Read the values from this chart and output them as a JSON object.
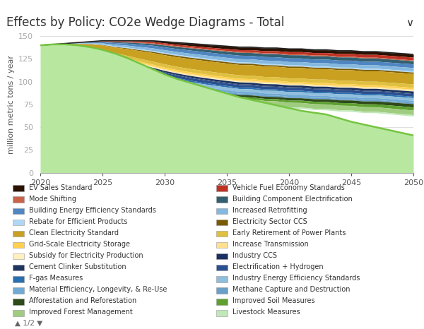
{
  "title": "Effects by Policy: CO2e Wedge Diagrams - Total",
  "ylabel": "million metric tons / year",
  "xlim": [
    2020,
    2050
  ],
  "ylim": [
    0,
    150
  ],
  "yticks": [
    0,
    25,
    50,
    75,
    100,
    125,
    150
  ],
  "xticks": [
    2020,
    2025,
    2030,
    2035,
    2040,
    2045,
    2050
  ],
  "years": [
    2020,
    2021,
    2022,
    2023,
    2024,
    2025,
    2026,
    2027,
    2028,
    2029,
    2030,
    2031,
    2032,
    2033,
    2034,
    2035,
    2036,
    2037,
    2038,
    2039,
    2040,
    2041,
    2042,
    2043,
    2044,
    2045,
    2046,
    2047,
    2048,
    2049,
    2050
  ],
  "bau_line": [
    140,
    141,
    142,
    143,
    144,
    145,
    145,
    145,
    145,
    145,
    144,
    143,
    142,
    141,
    140,
    139,
    138,
    138,
    137,
    137,
    136,
    136,
    135,
    135,
    134,
    134,
    133,
    133,
    132,
    131,
    130
  ],
  "remaining_line": [
    140,
    141,
    141,
    140,
    138,
    135,
    131,
    126,
    120,
    114,
    108,
    103,
    99,
    95,
    91,
    87,
    83,
    80,
    77,
    74,
    71,
    68,
    66,
    64,
    60,
    56,
    53,
    50,
    47,
    44,
    41
  ],
  "series": [
    {
      "name": "EV Sales Standard",
      "color": "#2b1100",
      "values": [
        0,
        0,
        0,
        0,
        0,
        0,
        0,
        0,
        0.5,
        1.0,
        1.5,
        2.0,
        2.3,
        2.5,
        2.7,
        2.8,
        2.9,
        3.0,
        3.0,
        3.1,
        3.1,
        3.1,
        3.1,
        3.1,
        3.1,
        3.1,
        3.1,
        3.1,
        3.1,
        3.1,
        3.1
      ]
    },
    {
      "name": "Vehicle Fuel Economy Standards",
      "color": "#bf3222",
      "values": [
        0,
        0,
        0,
        0,
        0.2,
        0.5,
        0.8,
        1.0,
        1.2,
        1.4,
        1.5,
        1.6,
        1.7,
        1.8,
        1.9,
        2.0,
        2.1,
        2.2,
        2.3,
        2.4,
        2.5,
        2.6,
        2.7,
        2.8,
        2.9,
        3.0,
        3.1,
        3.1,
        3.1,
        3.1,
        3.1
      ]
    },
    {
      "name": "Mode Shifting",
      "color": "#c9634a",
      "values": [
        0,
        0,
        0,
        0,
        0.1,
        0.3,
        0.5,
        0.6,
        0.7,
        0.8,
        0.9,
        0.9,
        0.9,
        0.9,
        0.9,
        0.9,
        0.9,
        0.9,
        0.9,
        0.9,
        0.9,
        0.9,
        0.9,
        0.9,
        0.9,
        0.9,
        0.9,
        0.9,
        0.9,
        0.9,
        0.9
      ]
    },
    {
      "name": "Building Component Electrification",
      "color": "#326070",
      "values": [
        0,
        0,
        0,
        0,
        0.2,
        0.5,
        0.9,
        1.2,
        1.5,
        1.8,
        2.0,
        2.2,
        2.4,
        2.6,
        2.8,
        3.0,
        3.1,
        3.2,
        3.3,
        3.4,
        3.5,
        3.5,
        3.5,
        3.5,
        3.5,
        3.5,
        3.5,
        3.5,
        3.5,
        3.5,
        3.5
      ]
    },
    {
      "name": "Building Energy Efficiency Standards",
      "color": "#4f86c2",
      "values": [
        0,
        0.1,
        0.2,
        0.4,
        0.8,
        1.3,
        1.8,
        2.2,
        2.6,
        2.9,
        3.1,
        3.3,
        3.4,
        3.5,
        3.6,
        3.7,
        3.8,
        3.8,
        3.9,
        3.9,
        4.0,
        4.0,
        4.0,
        4.0,
        4.0,
        4.0,
        4.0,
        4.0,
        4.0,
        4.0,
        4.0
      ]
    },
    {
      "name": "Increased Retrofitting",
      "color": "#85b8de",
      "values": [
        0,
        0.1,
        0.2,
        0.4,
        0.7,
        1.2,
        1.7,
        2.1,
        2.5,
        2.8,
        3.0,
        3.1,
        3.2,
        3.3,
        3.4,
        3.5,
        3.6,
        3.6,
        3.7,
        3.7,
        3.7,
        3.7,
        3.7,
        3.7,
        3.7,
        3.7,
        3.7,
        3.7,
        3.7,
        3.7,
        3.7
      ]
    },
    {
      "name": "Rebate for Efficient Products",
      "color": "#b0d8f5",
      "values": [
        0,
        0.05,
        0.1,
        0.2,
        0.4,
        0.6,
        0.8,
        0.9,
        1.0,
        1.1,
        1.2,
        1.2,
        1.3,
        1.3,
        1.3,
        1.3,
        1.3,
        1.3,
        1.3,
        1.3,
        1.3,
        1.3,
        1.3,
        1.3,
        1.3,
        1.3,
        1.3,
        1.3,
        1.3,
        1.3,
        1.3
      ]
    },
    {
      "name": "Electricity Sector CCS",
      "color": "#7a5a00",
      "values": [
        0,
        0,
        0,
        0.1,
        0.2,
        0.4,
        0.6,
        0.8,
        1.0,
        1.2,
        1.4,
        1.5,
        1.5,
        1.5,
        1.5,
        1.5,
        1.5,
        1.5,
        1.5,
        1.5,
        1.5,
        1.5,
        1.5,
        1.5,
        1.5,
        1.5,
        1.5,
        1.5,
        1.5,
        1.5,
        1.5
      ]
    },
    {
      "name": "Clean Electricity Standard",
      "color": "#c9a020",
      "values": [
        0,
        0.3,
        0.7,
        1.5,
        2.8,
        4.5,
        6.0,
        7.5,
        8.5,
        9.5,
        10.0,
        10.5,
        10.8,
        11.0,
        11.2,
        11.3,
        11.4,
        11.5,
        11.5,
        11.5,
        11.5,
        11.5,
        11.5,
        11.5,
        11.5,
        11.5,
        11.5,
        11.5,
        11.5,
        11.5,
        11.5
      ]
    },
    {
      "name": "Early Retirement of Power Plants",
      "color": "#e0c040",
      "values": [
        0,
        0.1,
        0.3,
        0.6,
        1.0,
        1.5,
        2.0,
        2.5,
        3.0,
        3.3,
        3.5,
        3.6,
        3.7,
        3.8,
        3.8,
        3.8,
        3.8,
        3.8,
        3.8,
        3.8,
        3.8,
        3.8,
        3.8,
        3.8,
        3.8,
        3.8,
        3.8,
        3.8,
        3.8,
        3.8,
        3.8
      ]
    },
    {
      "name": "Grid-Scale Electricity Storage",
      "color": "#ffd050",
      "values": [
        0,
        0.05,
        0.1,
        0.2,
        0.4,
        0.7,
        1.0,
        1.3,
        1.5,
        1.7,
        1.8,
        1.9,
        2.0,
        2.0,
        2.0,
        2.0,
        2.0,
        2.0,
        2.0,
        2.0,
        2.0,
        2.0,
        2.0,
        2.0,
        2.0,
        2.0,
        2.0,
        2.0,
        2.0,
        2.0,
        2.0
      ]
    },
    {
      "name": "Increase Transmission",
      "color": "#ffe090",
      "values": [
        0,
        0.05,
        0.1,
        0.2,
        0.3,
        0.5,
        0.7,
        0.8,
        1.0,
        1.1,
        1.2,
        1.2,
        1.3,
        1.3,
        1.3,
        1.3,
        1.3,
        1.3,
        1.3,
        1.3,
        1.3,
        1.3,
        1.3,
        1.3,
        1.3,
        1.3,
        1.3,
        1.3,
        1.3,
        1.3,
        1.3
      ]
    },
    {
      "name": "Subsidy for Electricity Production",
      "color": "#fff0c0",
      "values": [
        0,
        0.05,
        0.1,
        0.2,
        0.3,
        0.4,
        0.5,
        0.6,
        0.6,
        0.7,
        0.7,
        0.7,
        0.7,
        0.7,
        0.7,
        0.7,
        0.7,
        0.7,
        0.7,
        0.7,
        0.7,
        0.7,
        0.7,
        0.7,
        0.7,
        0.7,
        0.7,
        0.7,
        0.7,
        0.7,
        0.7
      ]
    },
    {
      "name": "Industry CCS",
      "color": "#1a3060",
      "values": [
        0,
        0,
        0,
        0.1,
        0.2,
        0.4,
        0.6,
        0.8,
        1.0,
        1.2,
        1.4,
        1.5,
        1.6,
        1.7,
        1.8,
        1.9,
        2.0,
        2.0,
        2.0,
        2.0,
        2.0,
        2.0,
        2.0,
        2.0,
        2.0,
        2.0,
        2.0,
        2.0,
        2.0,
        2.0,
        2.0
      ]
    },
    {
      "name": "Cement Clinker Substitution",
      "color": "#1e3560",
      "values": [
        0,
        0.05,
        0.1,
        0.2,
        0.3,
        0.4,
        0.5,
        0.6,
        0.6,
        0.7,
        0.7,
        0.7,
        0.7,
        0.7,
        0.7,
        0.7,
        0.7,
        0.7,
        0.7,
        0.7,
        0.7,
        0.7,
        0.7,
        0.7,
        0.7,
        0.7,
        0.7,
        0.7,
        0.7,
        0.7,
        0.7
      ]
    },
    {
      "name": "Electrification + Hydrogen",
      "color": "#2b5090",
      "values": [
        0,
        0,
        0,
        0.1,
        0.3,
        0.7,
        1.1,
        1.5,
        1.9,
        2.2,
        2.5,
        2.7,
        2.9,
        3.0,
        3.0,
        3.0,
        3.0,
        3.0,
        3.0,
        3.0,
        3.0,
        3.0,
        3.0,
        3.0,
        3.0,
        3.0,
        3.0,
        3.0,
        3.0,
        3.0,
        3.0
      ]
    },
    {
      "name": "F-gas Measures",
      "color": "#2870b0",
      "values": [
        0,
        0.05,
        0.1,
        0.2,
        0.4,
        0.6,
        0.8,
        1.0,
        1.2,
        1.3,
        1.4,
        1.5,
        1.5,
        1.5,
        1.5,
        1.5,
        1.5,
        1.5,
        1.5,
        1.5,
        1.5,
        1.5,
        1.5,
        1.5,
        1.5,
        1.5,
        1.5,
        1.5,
        1.5,
        1.5,
        1.5
      ]
    },
    {
      "name": "Industry Energy Efficiency Standards",
      "color": "#90bedd",
      "values": [
        0,
        0.1,
        0.2,
        0.4,
        0.7,
        1.1,
        1.5,
        1.9,
        2.2,
        2.5,
        2.7,
        2.8,
        2.9,
        3.0,
        3.0,
        3.0,
        3.0,
        3.0,
        3.0,
        3.0,
        3.0,
        3.0,
        3.0,
        3.0,
        3.0,
        3.0,
        3.0,
        3.0,
        3.0,
        3.0,
        3.0
      ]
    },
    {
      "name": "Material Efficiency, Longevity, & Re-Use",
      "color": "#70aad5",
      "values": [
        0,
        0.05,
        0.1,
        0.2,
        0.4,
        0.7,
        1.0,
        1.3,
        1.6,
        1.8,
        2.0,
        2.1,
        2.2,
        2.2,
        2.2,
        2.2,
        2.2,
        2.2,
        2.2,
        2.2,
        2.2,
        2.2,
        2.2,
        2.2,
        2.2,
        2.2,
        2.2,
        2.2,
        2.2,
        2.2,
        2.2
      ]
    },
    {
      "name": "Methane Capture and Destruction",
      "color": "#6aa0c8",
      "values": [
        0,
        0.05,
        0.1,
        0.2,
        0.4,
        0.6,
        0.8,
        1.0,
        1.2,
        1.3,
        1.4,
        1.5,
        1.5,
        1.5,
        1.5,
        1.5,
        1.5,
        1.5,
        1.5,
        1.5,
        1.5,
        1.5,
        1.5,
        1.5,
        1.5,
        1.5,
        1.5,
        1.5,
        1.5,
        1.5,
        1.5
      ]
    },
    {
      "name": "Afforestation and Reforestation",
      "color": "#2e4a18",
      "values": [
        0,
        0.05,
        0.1,
        0.2,
        0.3,
        0.5,
        0.7,
        0.9,
        1.1,
        1.3,
        1.5,
        1.6,
        1.7,
        1.8,
        1.9,
        2.0,
        2.1,
        2.2,
        2.3,
        2.4,
        2.5,
        2.6,
        2.7,
        2.8,
        2.9,
        3.0,
        3.1,
        3.2,
        3.3,
        3.4,
        3.5
      ]
    },
    {
      "name": "Improved Soil Measures",
      "color": "#5ea030",
      "values": [
        0,
        0.05,
        0.1,
        0.2,
        0.3,
        0.5,
        0.7,
        0.9,
        1.1,
        1.3,
        1.5,
        1.6,
        1.7,
        1.8,
        1.9,
        2.0,
        2.1,
        2.2,
        2.3,
        2.4,
        2.5,
        2.6,
        2.7,
        2.8,
        2.9,
        3.0,
        3.1,
        3.2,
        3.3,
        3.4,
        3.5
      ]
    },
    {
      "name": "Improved Forest Management",
      "color": "#a0cc80",
      "values": [
        0,
        0.1,
        0.2,
        0.5,
        1.0,
        1.5,
        2.0,
        2.5,
        3.0,
        3.5,
        4.0,
        4.2,
        4.3,
        4.5,
        4.6,
        4.7,
        4.8,
        4.9,
        5.0,
        5.0,
        5.0,
        5.0,
        5.0,
        5.0,
        5.0,
        5.0,
        5.0,
        5.0,
        5.0,
        5.0,
        5.0
      ]
    },
    {
      "name": "Livestock Measures",
      "color": "#c0e8b8",
      "values": [
        0,
        0.05,
        0.1,
        0.2,
        0.4,
        0.6,
        0.8,
        1.0,
        1.2,
        1.3,
        1.4,
        1.5,
        1.5,
        1.5,
        1.5,
        1.5,
        1.5,
        1.5,
        1.5,
        1.5,
        1.5,
        1.5,
        1.5,
        1.5,
        1.5,
        1.5,
        1.5,
        1.5,
        1.5,
        1.5,
        1.5
      ]
    }
  ],
  "background_color": "#ffffff",
  "title_color": "#333333",
  "axis_color": "#aaaaaa",
  "tick_color": "#555555",
  "grid_color": "#dddddd",
  "title_fontsize": 12,
  "axis_label_fontsize": 8,
  "tick_fontsize": 8,
  "legend_fontsize": 7,
  "legend_series": [
    [
      "EV Sales Standard",
      "#2b1100"
    ],
    [
      "Vehicle Fuel Economy Standards",
      "#bf3222"
    ],
    [
      "Mode Shifting",
      "#c9634a"
    ],
    [
      "Building Component Electrification",
      "#326070"
    ],
    [
      "Building Energy Efficiency Standards",
      "#4f86c2"
    ],
    [
      "Increased Retrofitting",
      "#85b8de"
    ],
    [
      "Rebate for Efficient Products",
      "#b0d8f5"
    ],
    [
      "Electricity Sector CCS",
      "#7a5a00"
    ],
    [
      "Clean Electricity Standard",
      "#c9a020"
    ],
    [
      "Early Retirement of Power Plants",
      "#e0c040"
    ],
    [
      "Grid-Scale Electricity Storage",
      "#ffd050"
    ],
    [
      "Increase Transmission",
      "#ffe090"
    ],
    [
      "Subsidy for Electricity Production",
      "#fff0c0"
    ],
    [
      "Industry CCS",
      "#1a3060"
    ],
    [
      "Cement Clinker Substitution",
      "#1e3560"
    ],
    [
      "Electrification + Hydrogen",
      "#2b5090"
    ],
    [
      "F-gas Measures",
      "#2870b0"
    ],
    [
      "Industry Energy Efficiency Standards",
      "#90bedd"
    ],
    [
      "Material Efficiency, Longevity, & Re-Use",
      "#70aad5"
    ],
    [
      "Methane Capture and Destruction",
      "#6aa0c8"
    ],
    [
      "Afforestation and Reforestation",
      "#2e4a18"
    ],
    [
      "Improved Soil Measures",
      "#5ea030"
    ],
    [
      "Improved Forest Management",
      "#a0cc80"
    ],
    [
      "Livestock Measures",
      "#c0e8b8"
    ]
  ]
}
